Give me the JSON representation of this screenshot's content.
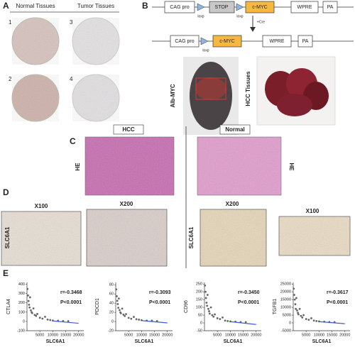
{
  "panel_a": {
    "label": "A",
    "headers": [
      "Normal Tissues",
      "Tumor Tissues"
    ],
    "numbers": [
      "1",
      "3",
      "2",
      "4"
    ]
  },
  "panel_b": {
    "label": "B",
    "construct_1": [
      "CAG pro",
      "STOP",
      "c-MYC",
      "WPRE",
      "PA"
    ],
    "loxp_1": [
      "loxp",
      "loxp"
    ],
    "cre": "+Cre",
    "construct_2": [
      "CAG pro",
      "c-MYC",
      "WPRE",
      "PA"
    ],
    "loxp_2": "loxp",
    "mouse_label": "Alb-MYC",
    "tissue_label": "HCC Tissues"
  },
  "panel_c": {
    "label": "C",
    "hcc": "HCC",
    "normal": "Normal",
    "stain_left": "HE",
    "stain_right": "HE"
  },
  "panel_d": {
    "label": "D",
    "left_mags": [
      "X100",
      "X200"
    ],
    "right_mags": [
      "X200",
      "X100"
    ],
    "stain_left": "SLC6A1",
    "stain_right": "SLC6A1"
  },
  "panel_e": {
    "label": "E"
  },
  "chart_data": [
    {
      "type": "scatter",
      "ylabel": "CTLA4",
      "xlabel": "SLC6A1",
      "annotations": [
        "r=-0.3468",
        "P<0.0001"
      ],
      "color": "#666666",
      "fit_color": "#3a5fcd",
      "x": [
        200,
        400,
        600,
        800,
        1000,
        1200,
        1500,
        1800,
        2000,
        2500,
        3000,
        3500,
        4000,
        5000,
        6000,
        7000,
        8000,
        9000,
        10000,
        12000,
        14000,
        16000
      ],
      "y": [
        350,
        280,
        220,
        180,
        150,
        260,
        120,
        100,
        90,
        140,
        70,
        60,
        80,
        40,
        30,
        50,
        20,
        15,
        10,
        8,
        5,
        3
      ],
      "fit": {
        "x": [
          10000,
          20000
        ],
        "y": [
          5,
          -20
        ]
      },
      "xlim": [
        0,
        22000
      ],
      "xticks": [
        5000,
        10000,
        15000,
        20000
      ],
      "ylim": [
        -100,
        420
      ],
      "yticks": [
        -100,
        0,
        100,
        200,
        300,
        400
      ]
    },
    {
      "type": "scatter",
      "ylabel": "PDCD1",
      "xlabel": "SLC6A1",
      "annotations": [
        "r=-0.3093",
        "P<0.0001"
      ],
      "color": "#666666",
      "fit_color": "#3a5fcd",
      "x": [
        200,
        400,
        600,
        800,
        1000,
        1200,
        1500,
        1800,
        2000,
        2500,
        3000,
        3500,
        4000,
        5000,
        6000,
        7000,
        8000,
        9000,
        10000,
        12000,
        14000,
        16000
      ],
      "y": [
        70,
        55,
        45,
        38,
        30,
        50,
        25,
        20,
        18,
        28,
        15,
        12,
        16,
        8,
        6,
        10,
        5,
        4,
        3,
        2,
        2,
        1
      ],
      "fit": {
        "x": [
          10000,
          20000
        ],
        "y": [
          2,
          -3
        ]
      },
      "xlim": [
        0,
        22000
      ],
      "xticks": [
        5000,
        10000,
        15000,
        20000
      ],
      "ylim": [
        -20,
        85
      ],
      "yticks": [
        -20,
        0,
        20,
        40,
        60,
        80
      ]
    },
    {
      "type": "scatter",
      "ylabel": "CD96",
      "xlabel": "SLC6A1",
      "annotations": [
        "r=-0.3450",
        "P<0.0001"
      ],
      "color": "#666666",
      "fit_color": "#3a5fcd",
      "x": [
        200,
        400,
        600,
        800,
        1000,
        1200,
        1500,
        1800,
        2000,
        2500,
        3000,
        3500,
        4000,
        5000,
        6000,
        7000,
        8000,
        9000,
        10000,
        12000,
        14000,
        16000
      ],
      "y": [
        240,
        200,
        160,
        130,
        110,
        180,
        90,
        75,
        60,
        100,
        50,
        40,
        55,
        30,
        25,
        35,
        15,
        12,
        10,
        8,
        6,
        5
      ],
      "fit": {
        "x": [
          10000,
          20000
        ],
        "y": [
          8,
          -10
        ]
      },
      "xlim": [
        0,
        22000
      ],
      "xticks": [
        5000,
        10000,
        15000,
        20000
      ],
      "ylim": [
        -50,
        260
      ],
      "yticks": [
        -50,
        0,
        50,
        100,
        150,
        200,
        250
      ]
    },
    {
      "type": "scatter",
      "ylabel": "TGFB1",
      "xlabel": "SLC6A1",
      "annotations": [
        "r=-0.3617",
        "P<0.0001"
      ],
      "color": "#666666",
      "fit_color": "#3a5fcd",
      "x": [
        200,
        400,
        600,
        800,
        1000,
        1200,
        1500,
        1800,
        2000,
        2500,
        3000,
        3500,
        4000,
        5000,
        6000,
        7000,
        8000,
        9000,
        10000,
        12000,
        14000,
        16000
      ],
      "y": [
        22000,
        18000,
        15000,
        12000,
        9000,
        16000,
        8000,
        6500,
        5500,
        9000,
        4500,
        3500,
        5000,
        2500,
        2000,
        3000,
        1500,
        1200,
        1000,
        800,
        600,
        500
      ],
      "fit": {
        "x": [
          10000,
          20000
        ],
        "y": [
          800,
          -500
        ]
      },
      "xlim": [
        0,
        22000
      ],
      "xticks": [
        5000,
        10000,
        15000,
        20000
      ],
      "ylim": [
        -5000,
        26000
      ],
      "yticks": [
        -5000,
        0,
        5000,
        10000,
        15000,
        20000,
        25000
      ]
    }
  ]
}
